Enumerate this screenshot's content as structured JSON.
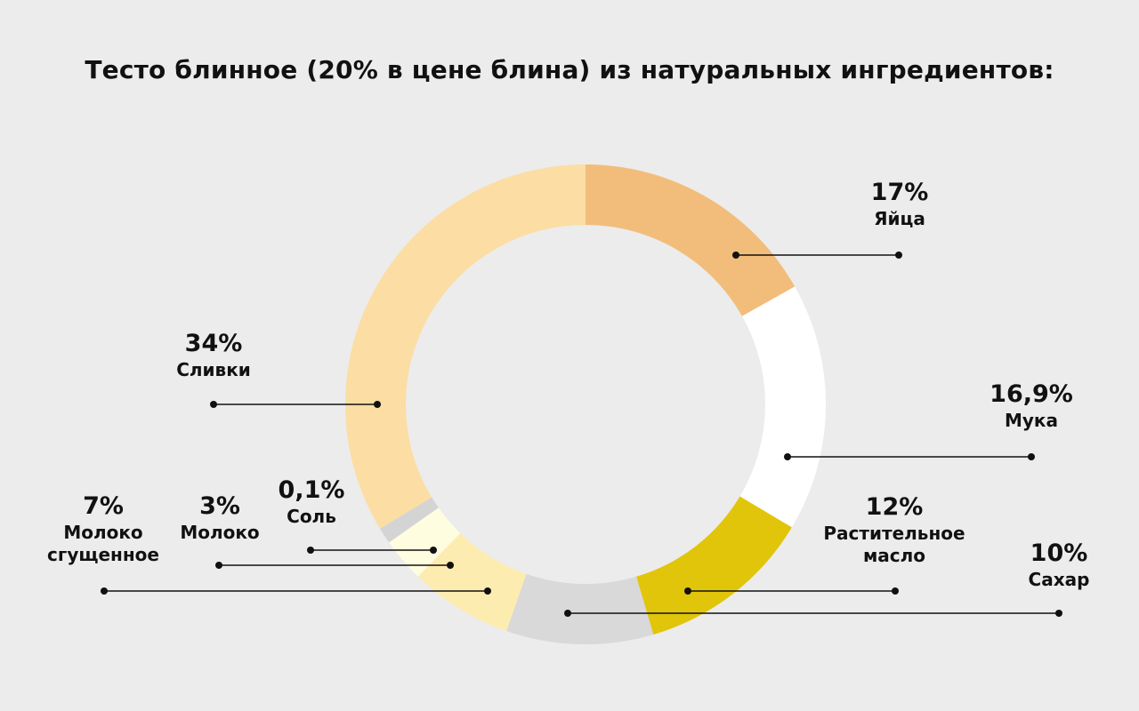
{
  "title": "Тесто блинное (20% в цене блина) из натуральных ингредиентов:",
  "chart_data": {
    "type": "pie",
    "style": "donut",
    "start_angle_deg": 0,
    "direction": "clockwise",
    "slices": [
      {
        "key": "eggs",
        "name": "Яйца",
        "value_label": "17%",
        "value": 17,
        "color": "#f2bd7b"
      },
      {
        "key": "flour",
        "name": "Мука",
        "value_label": "16,9%",
        "value": 16.9,
        "color": "#ffffff"
      },
      {
        "key": "oil",
        "name": "Растительное масло",
        "value_label": "12%",
        "value": 12,
        "color": "#e1c50a"
      },
      {
        "key": "sugar",
        "name": "Сахар",
        "value_label": "10%",
        "value": 10,
        "color": "#d9d9d9"
      },
      {
        "key": "condensed",
        "name": "Молоко сгущенное",
        "value_label": "7%",
        "value": 7,
        "color": "#fdecb0"
      },
      {
        "key": "milk",
        "name": "Молоко",
        "value_label": "3%",
        "value": 3,
        "color": "#fffde0"
      },
      {
        "key": "salt",
        "name": "Соль",
        "value_label": "0,1%",
        "value": 0.1,
        "color": "#d4d4d4"
      },
      {
        "key": "cream",
        "name": "Сливки",
        "value_label": "34%",
        "value": 34,
        "color": "#fcdda3"
      }
    ],
    "legend": "callout labels with leader lines"
  }
}
